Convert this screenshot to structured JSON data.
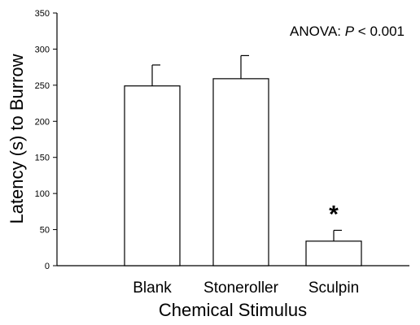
{
  "chart_data": {
    "type": "bar",
    "categories": [
      "Blank",
      "Stoneroller",
      "Sculpin"
    ],
    "values": [
      249,
      259,
      34
    ],
    "errors": [
      29,
      32,
      15
    ],
    "significance": [
      "",
      "",
      "*"
    ],
    "xlabel": "Chemical Stimulus",
    "ylabel": "Latency (s) to Burrow",
    "ylim": [
      0,
      350
    ],
    "yticks": [
      0,
      50,
      100,
      150,
      200,
      250,
      300,
      350
    ],
    "annotation_prefix": "ANOVA: ",
    "annotation_italic": "P",
    "annotation_suffix": " < 0.001",
    "bar_fill": "#ffffff",
    "bar_stroke": "#000000",
    "grid": false
  }
}
